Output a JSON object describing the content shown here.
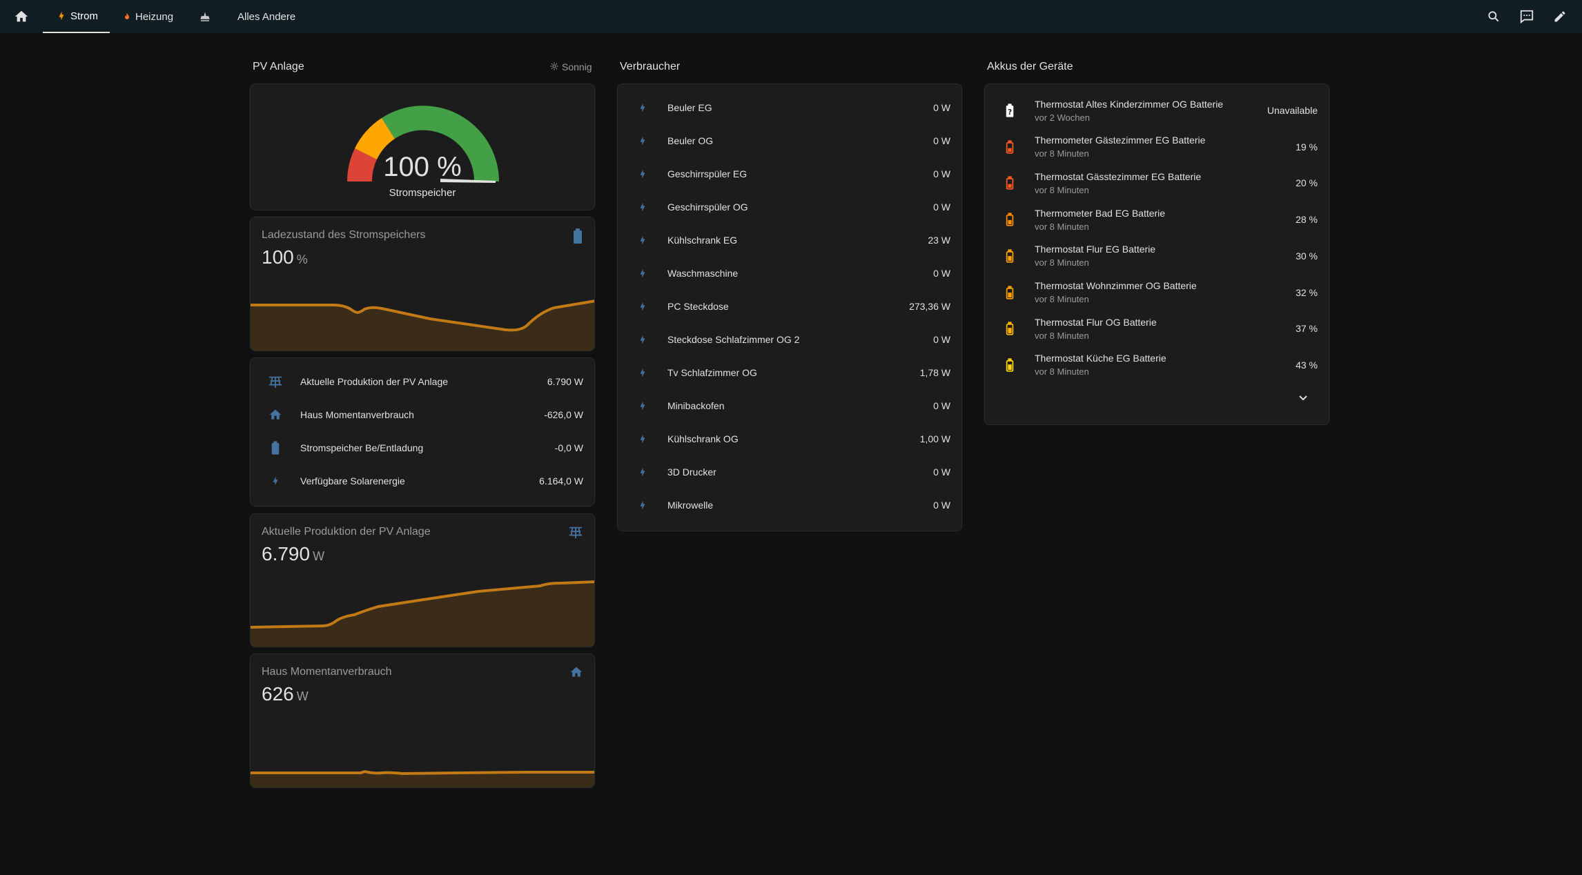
{
  "topbar": {
    "tabs": [
      {
        "label": "",
        "icon": "home-icon"
      },
      {
        "label": "Strom",
        "icon": "lightning-icon",
        "color": "#ff9800"
      },
      {
        "label": "Heizung",
        "icon": "fire-icon",
        "color": "#ff6f22"
      },
      {
        "label": "",
        "icon": "robot-vacuum-icon"
      },
      {
        "label": "Alles Andere",
        "icon": ""
      }
    ],
    "actions": [
      "search-icon",
      "assist-icon",
      "edit-icon"
    ]
  },
  "pv": {
    "title": "PV Anlage",
    "weather": "Sonnig",
    "gauge": {
      "value": "100 %",
      "name": "Stromspeicher",
      "level": 1.0
    },
    "soc_card": {
      "name": "Ladezustand des Stromspeichers",
      "value": "100",
      "unit": "%"
    },
    "entities": [
      {
        "icon": "solar-panel-icon",
        "label": "Aktuelle Produktion der PV Anlage",
        "value": "6.790 W"
      },
      {
        "icon": "home-icon",
        "label": "Haus Momentanverbrauch",
        "value": "-626,0 W"
      },
      {
        "icon": "battery-icon",
        "label": "Stromspeicher Be/Entladung",
        "value": "-0,0 W"
      },
      {
        "icon": "lightning-icon",
        "label": "Verfügbare Solarenergie",
        "value": "6.164,0 W"
      }
    ],
    "production_card": {
      "name": "Aktuelle Produktion der PV Anlage",
      "value": "6.790",
      "unit": "W"
    },
    "house_card": {
      "name": "Haus Momentanverbrauch",
      "value": "626",
      "unit": "W"
    }
  },
  "verbraucher": {
    "title": "Verbraucher",
    "items": [
      {
        "label": "Beuler EG",
        "value": "0 W"
      },
      {
        "label": "Beuler OG",
        "value": "0 W"
      },
      {
        "label": "Geschirrspüler EG",
        "value": "0 W"
      },
      {
        "label": "Geschirrspüler OG",
        "value": "0 W"
      },
      {
        "label": "Kühlschrank EG",
        "value": "23 W"
      },
      {
        "label": "Waschmaschine",
        "value": "0 W"
      },
      {
        "label": "PC Steckdose",
        "value": "273,36 W"
      },
      {
        "label": "Steckdose Schlafzimmer OG 2",
        "value": "0 W"
      },
      {
        "label": "Tv Schlafzimmer OG",
        "value": "1,78 W"
      },
      {
        "label": "Minibackofen",
        "value": "0 W"
      },
      {
        "label": "Kühlschrank OG",
        "value": "1,00 W"
      },
      {
        "label": "3D Drucker",
        "value": "0 W"
      },
      {
        "label": "Mikrowelle",
        "value": "0 W"
      }
    ]
  },
  "akkus": {
    "title": "Akkus der Geräte",
    "items": [
      {
        "label": "Thermostat Altes Kinderzimmer OG Batterie",
        "sub": "vor 2 Wochen",
        "value": "Unavailable",
        "color": "#ffffff",
        "level": 0
      },
      {
        "label": "Thermometer Gästezimmer EG Batterie",
        "sub": "vor 8 Minuten",
        "value": "19 %",
        "color": "#ff5a1f",
        "level": 0.19
      },
      {
        "label": "Thermostat Gässtezimmer EG Batterie",
        "sub": "vor 8 Minuten",
        "value": "20 %",
        "color": "#ff5a1f",
        "level": 0.2
      },
      {
        "label": "Thermometer Bad EG Batterie",
        "sub": "vor 8 Minuten",
        "value": "28 %",
        "color": "#ff8c00",
        "level": 0.28
      },
      {
        "label": "Thermostat Flur EG Batterie",
        "sub": "vor 8 Minuten",
        "value": "30 %",
        "color": "#ffa000",
        "level": 0.3
      },
      {
        "label": "Thermostat Wohnzimmer OG Batterie",
        "sub": "vor 8 Minuten",
        "value": "32 %",
        "color": "#ffa000",
        "level": 0.32
      },
      {
        "label": "Thermostat Flur OG Batterie",
        "sub": "vor 8 Minuten",
        "value": "37 %",
        "color": "#ffb300",
        "level": 0.37
      },
      {
        "label": "Thermostat Küche EG Batterie",
        "sub": "vor 8 Minuten",
        "value": "43 %",
        "color": "#ffd600",
        "level": 0.43
      }
    ]
  },
  "colors": {
    "accent_icon": "#44739e",
    "graph": "#c27a16",
    "graph_fill": "#3a2c18",
    "gauge_green": "#43a047",
    "gauge_orange": "#ffa600",
    "gauge_red": "#db4437"
  }
}
